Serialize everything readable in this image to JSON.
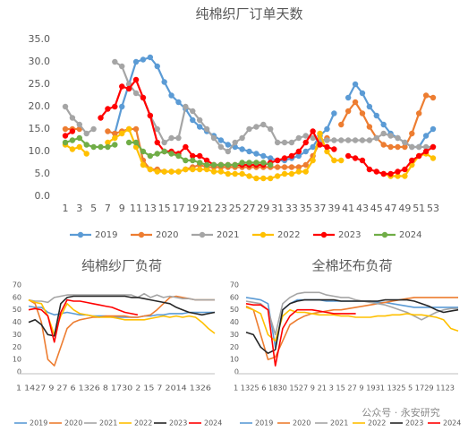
{
  "chart_data": [
    {
      "type": "line",
      "title": "纯棉织厂订单天数",
      "x": [
        1,
        2,
        3,
        4,
        5,
        6,
        7,
        8,
        9,
        10,
        11,
        12,
        13,
        14,
        15,
        16,
        17,
        18,
        19,
        20,
        21,
        22,
        23,
        24,
        25,
        26,
        27,
        28,
        29,
        30,
        31,
        32,
        33,
        34,
        35,
        36,
        37,
        38,
        39,
        40,
        41,
        42,
        43,
        44,
        45,
        46,
        47,
        48,
        49,
        50,
        51,
        52,
        53
      ],
      "xlim": [
        1,
        53
      ],
      "xticks": [
        1,
        3,
        5,
        7,
        9,
        11,
        13,
        15,
        17,
        19,
        21,
        23,
        25,
        27,
        29,
        31,
        33,
        35,
        37,
        39,
        41,
        43,
        45,
        47,
        49,
        51,
        53
      ],
      "ylim": [
        0,
        35
      ],
      "yticks": [
        {
          "value": 0,
          "label": "0.0"
        },
        {
          "value": 5,
          "label": "5.0"
        },
        {
          "value": 10,
          "label": "10.0"
        },
        {
          "value": 15,
          "label": "15.0"
        },
        {
          "value": 20,
          "label": "20.0"
        },
        {
          "value": 25,
          "label": "25.0"
        },
        {
          "value": 30,
          "label": "30.0"
        },
        {
          "value": 35,
          "label": "35.0"
        }
      ],
      "grid": false,
      "markers": true,
      "series": [
        {
          "name": "2019",
          "color": "#5b9bd5",
          "values": [
            null,
            null,
            null,
            null,
            null,
            null,
            null,
            14,
            20,
            25,
            30,
            30.5,
            31,
            29,
            25.5,
            22.5,
            21,
            19.5,
            17,
            15.5,
            14.5,
            13.5,
            12.5,
            11.5,
            11,
            10.5,
            10,
            9.5,
            9,
            8.5,
            8,
            8,
            8.5,
            9,
            10,
            11,
            13.5,
            15,
            18.5,
            null,
            22,
            25,
            23,
            20,
            18,
            16,
            14,
            13,
            12,
            11,
            11,
            13.5,
            15
          ]
        },
        {
          "name": "2020",
          "color": "#ed7d31",
          "values": [
            15,
            15,
            15,
            null,
            null,
            null,
            14.5,
            14,
            14.5,
            15,
            15,
            8,
            6,
            6,
            5.5,
            5.5,
            5.5,
            6,
            6.5,
            7,
            6.5,
            6.5,
            6.5,
            6.5,
            6.5,
            6.5,
            6.5,
            6.5,
            6.5,
            6.5,
            6.5,
            6.5,
            6.5,
            6.5,
            7,
            9,
            12,
            13,
            null,
            16,
            19,
            21,
            18.5,
            15.5,
            13,
            11.5,
            11,
            11,
            11,
            14,
            18.5,
            22.5,
            22
          ]
        },
        {
          "name": "2021",
          "color": "#a5a5a5",
          "values": [
            20,
            17.5,
            16,
            14,
            15,
            null,
            null,
            30,
            29,
            25,
            23,
            22,
            18,
            15,
            12,
            13,
            13,
            20,
            19,
            17,
            15,
            13,
            11,
            10,
            12,
            13,
            15,
            15.5,
            16,
            15,
            12,
            12,
            12,
            13,
            13.5,
            13,
            12.5,
            12.5,
            12.5,
            12.5,
            12.5,
            12.5,
            12.5,
            12.5,
            13,
            14,
            13.5,
            13,
            12,
            11,
            11,
            11,
            11
          ]
        },
        {
          "name": "2022",
          "color": "#ffc000",
          "values": [
            11.5,
            10.5,
            11,
            9.5,
            null,
            null,
            12,
            13,
            14,
            15,
            11,
            7,
            6,
            5.5,
            5.5,
            5.5,
            5.5,
            6,
            6,
            6,
            6,
            5.5,
            5.5,
            5,
            5,
            5,
            4.5,
            4,
            4,
            4,
            4.5,
            5,
            5,
            5.5,
            5.5,
            8,
            14,
            10,
            8,
            8,
            null,
            null,
            null,
            null,
            null,
            5,
            4.5,
            4.5,
            4.5,
            7,
            9,
            9.5,
            8.5
          ]
        },
        {
          "name": "2023",
          "color": "#ff0000",
          "values": [
            13.5,
            14.5,
            null,
            null,
            null,
            17.5,
            19.5,
            20,
            24.5,
            24,
            26,
            22,
            18,
            12,
            10,
            10,
            9.5,
            11,
            9,
            9,
            8,
            7,
            7,
            7,
            7,
            7,
            7,
            7,
            7,
            7.5,
            8,
            8.5,
            9,
            10,
            12,
            14.5,
            11.5,
            11,
            10.5,
            null,
            9,
            8.5,
            8,
            6,
            5.5,
            5,
            5,
            5.5,
            6,
            8,
            9,
            10,
            11
          ]
        },
        {
          "name": "2024",
          "color": "#70ad47",
          "values": [
            12,
            12.5,
            13,
            11.5,
            11,
            11,
            11,
            11.5,
            null,
            12,
            12,
            10,
            9,
            9.5,
            10,
            9.5,
            9,
            8,
            8,
            7.5,
            7,
            7,
            7,
            7,
            7,
            7.5,
            7.5,
            7.5,
            7.5,
            7,
            null,
            null,
            null,
            null,
            null,
            null,
            null,
            null,
            null,
            null,
            null,
            null,
            null,
            null,
            null,
            null,
            null,
            null,
            null,
            null,
            null,
            null,
            null
          ]
        }
      ]
    },
    {
      "type": "line",
      "title": "纯棉纱厂负荷",
      "x_axis_text": "1 1427 9 27 6 1326 8 1730 2 15 7 2014 1326",
      "ylim": [
        0,
        70
      ],
      "yticks": [
        0,
        10,
        20,
        30,
        40,
        50,
        60,
        70
      ],
      "grid": false,
      "markers": false,
      "series": [
        {
          "name": "2019",
          "color": "#5b9bd5",
          "values": [
            53,
            52,
            52,
            48,
            46,
            47,
            48,
            47,
            46,
            46,
            45,
            45,
            45,
            44,
            44,
            44,
            44,
            44,
            45,
            45,
            46,
            46,
            47,
            47,
            47,
            48,
            48,
            48,
            48,
            48
          ]
        },
        {
          "name": "2020",
          "color": "#ed7d31",
          "values": [
            58,
            55,
            40,
            10,
            5,
            20,
            35,
            40,
            42,
            43,
            44,
            44,
            45,
            45,
            45,
            45,
            44,
            44,
            45,
            46,
            50,
            55,
            60,
            61,
            60,
            59,
            58,
            58,
            58,
            58
          ]
        },
        {
          "name": "2021",
          "color": "#a5a5a5",
          "values": [
            58,
            57,
            57,
            56,
            60,
            61,
            62,
            62,
            62,
            62,
            62,
            62,
            62,
            62,
            62,
            62,
            62,
            60,
            63,
            60,
            62,
            60,
            61,
            60,
            59,
            59,
            58,
            58,
            58,
            58
          ]
        },
        {
          "name": "2022",
          "color": "#ffc000",
          "values": [
            58,
            56,
            55,
            45,
            30,
            45,
            55,
            50,
            47,
            46,
            45,
            44,
            44,
            44,
            43,
            42,
            42,
            42,
            42,
            43,
            44,
            45,
            44,
            45,
            44,
            45,
            44,
            40,
            35,
            31
          ]
        },
        {
          "name": "2023",
          "color": "#262626",
          "values": [
            40,
            42,
            38,
            30,
            29,
            55,
            60,
            61,
            61,
            61,
            61,
            61,
            61,
            61,
            61,
            61,
            60,
            60,
            59,
            58,
            57,
            56,
            55,
            52,
            50,
            48,
            47,
            46,
            47,
            48
          ]
        },
        {
          "name": "2024",
          "color": "#ff0000",
          "values": [
            50,
            51,
            50,
            45,
            24,
            48,
            58,
            57,
            57,
            56,
            55,
            54,
            53,
            52,
            50,
            48,
            47,
            46,
            null,
            null,
            null,
            null,
            null,
            null,
            null,
            null,
            null,
            null,
            null,
            null
          ]
        }
      ]
    },
    {
      "type": "line",
      "title": "全棉坯布负荷",
      "x_axis_text": "1 1325 6 1830 1527 9 21 3 15 27 9 1931 1325 5 1729 1123",
      "ylim": [
        0,
        70
      ],
      "yticks": [
        0,
        10,
        20,
        30,
        40,
        50,
        60,
        70
      ],
      "grid": false,
      "markers": false,
      "series": [
        {
          "name": "2019",
          "color": "#5b9bd5",
          "values": [
            60,
            59,
            58,
            55,
            20,
            50,
            55,
            58,
            58,
            58,
            58,
            57,
            57,
            57,
            57,
            57,
            57,
            57,
            56,
            56,
            55,
            54,
            53,
            52,
            52,
            52,
            52,
            52,
            52,
            52
          ]
        },
        {
          "name": "2020",
          "color": "#ed7d31",
          "values": [
            53,
            50,
            30,
            10,
            12,
            25,
            38,
            42,
            45,
            47,
            48,
            49,
            50,
            50,
            51,
            52,
            53,
            54,
            55,
            56,
            57,
            58,
            59,
            60,
            60,
            60,
            60,
            60,
            60,
            60
          ]
        },
        {
          "name": "2021",
          "color": "#a5a5a5",
          "values": [
            57,
            56,
            55,
            50,
            30,
            55,
            60,
            63,
            64,
            64,
            64,
            62,
            61,
            60,
            60,
            58,
            57,
            56,
            55,
            54,
            52,
            50,
            48,
            45,
            42,
            45,
            48,
            50,
            51,
            51
          ]
        },
        {
          "name": "2022",
          "color": "#ffc000",
          "values": [
            52,
            50,
            47,
            30,
            25,
            45,
            50,
            48,
            48,
            47,
            46,
            46,
            46,
            45,
            45,
            44,
            44,
            44,
            45,
            45,
            46,
            46,
            47,
            46,
            46,
            45,
            44,
            42,
            35,
            33
          ]
        },
        {
          "name": "2023",
          "color": "#262626",
          "values": [
            32,
            30,
            20,
            15,
            18,
            50,
            55,
            57,
            58,
            58,
            58,
            58,
            58,
            57,
            57,
            57,
            57,
            57,
            57,
            58,
            58,
            58,
            58,
            57,
            55,
            53,
            50,
            48,
            49,
            50
          ]
        },
        {
          "name": "2024",
          "color": "#ff0000",
          "values": [
            55,
            54,
            54,
            50,
            5,
            35,
            45,
            50,
            50,
            50,
            49,
            48,
            47,
            47,
            47,
            47,
            null,
            null,
            null,
            null,
            null,
            null,
            null,
            null,
            null,
            null,
            null,
            null,
            null,
            null
          ]
        }
      ]
    }
  ],
  "watermark": "公众号 · 永安研究"
}
